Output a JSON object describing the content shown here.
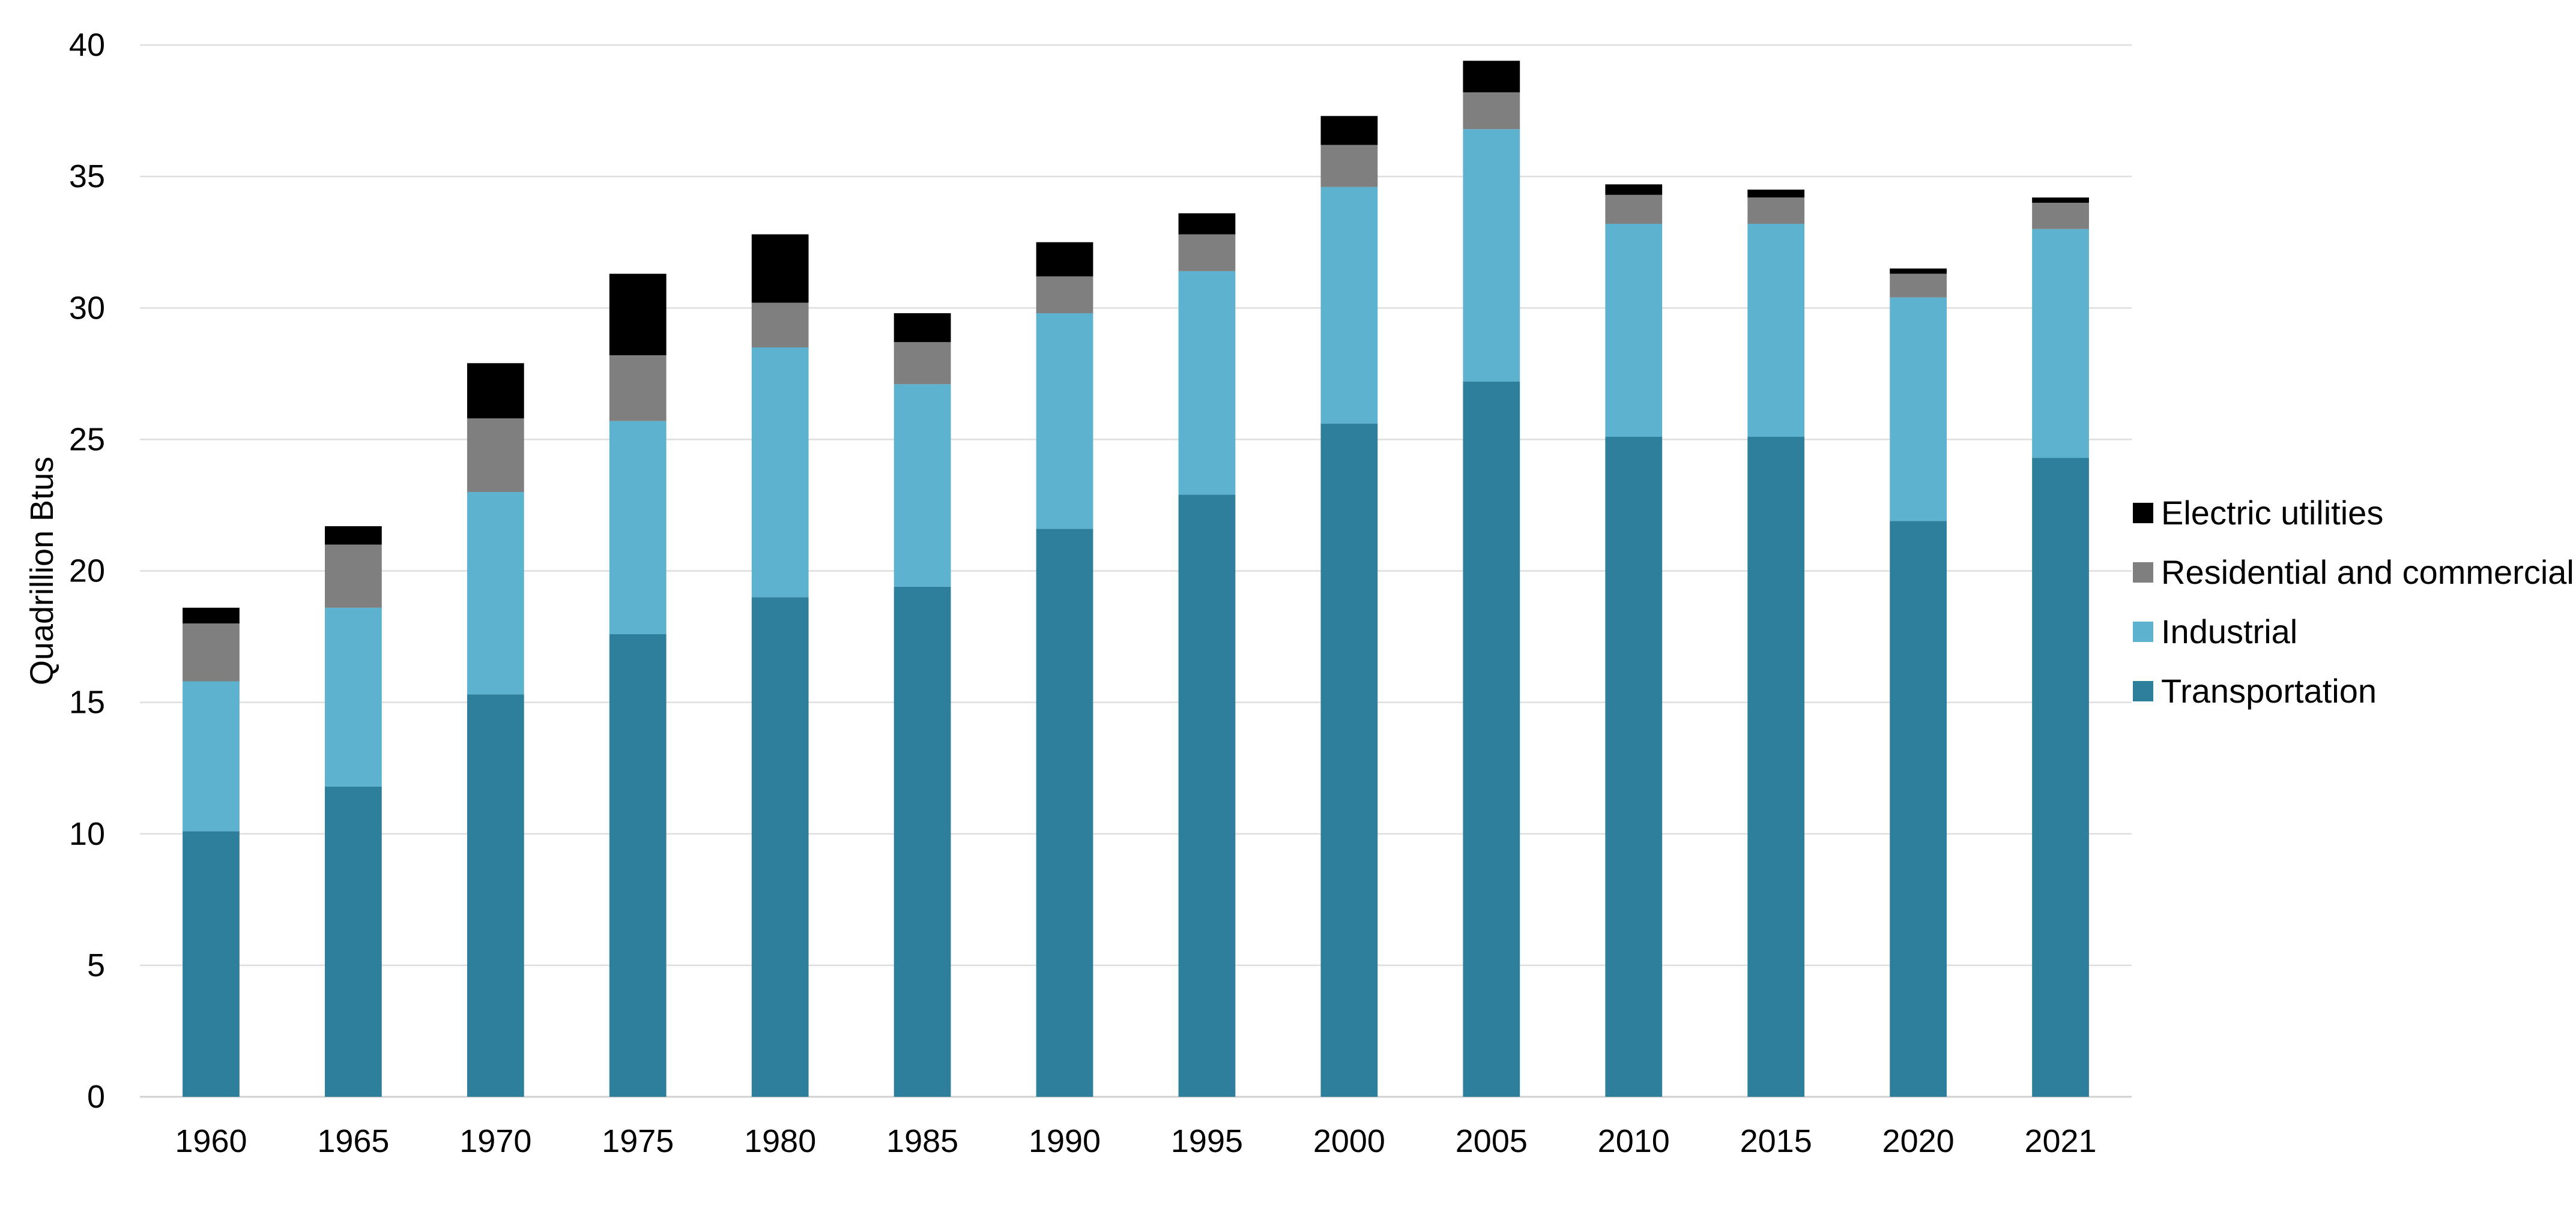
{
  "chart_data": {
    "type": "bar",
    "stacked": true,
    "title": "",
    "xlabel": "",
    "ylabel": "Quadrillion Btus",
    "ylim": [
      0,
      40
    ],
    "yticks": [
      0,
      5,
      10,
      15,
      20,
      25,
      30,
      35,
      40
    ],
    "grid": true,
    "legend_position": "right",
    "categories": [
      "1960",
      "1965",
      "1970",
      "1975",
      "1980",
      "1985",
      "1990",
      "1995",
      "2000",
      "2005",
      "2010",
      "2015",
      "2020",
      "2021"
    ],
    "series": [
      {
        "name": "Transportation",
        "color": "#2e7f9c",
        "values": [
          10.1,
          11.8,
          15.3,
          17.6,
          19.0,
          19.4,
          21.6,
          22.9,
          25.6,
          27.2,
          25.1,
          25.1,
          21.9,
          24.3
        ]
      },
      {
        "name": "Industrial",
        "color": "#5db2d0",
        "values": [
          5.7,
          6.8,
          7.7,
          8.1,
          9.5,
          7.7,
          8.2,
          8.5,
          9.0,
          9.6,
          8.1,
          8.1,
          8.5,
          8.7
        ]
      },
      {
        "name": "Residential and commercial",
        "color": "#7f7f7f",
        "values": [
          2.2,
          2.4,
          2.8,
          2.5,
          1.7,
          1.6,
          1.4,
          1.4,
          1.6,
          1.4,
          1.1,
          1.0,
          0.9,
          1.0
        ]
      },
      {
        "name": "Electric utilities",
        "color": "#000000",
        "values": [
          0.6,
          0.7,
          2.1,
          3.1,
          2.6,
          1.1,
          1.3,
          0.8,
          1.1,
          1.2,
          0.4,
          0.3,
          0.2,
          0.2
        ]
      }
    ],
    "legend_order": [
      "Electric utilities",
      "Residential and commercial",
      "Industrial",
      "Transportation"
    ]
  }
}
